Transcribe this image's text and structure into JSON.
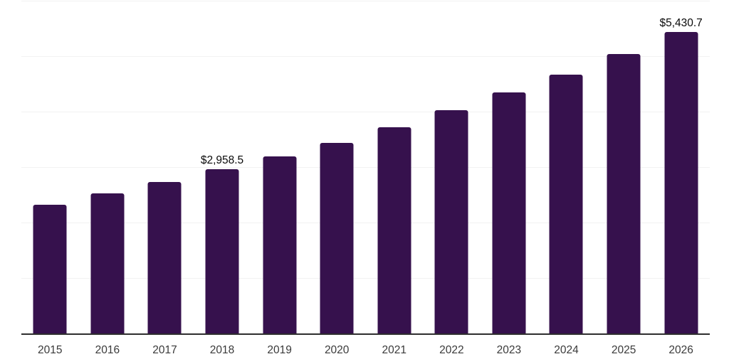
{
  "chart": {
    "background_color": "#ffffff",
    "bar_color": "#36114D",
    "gridline_color": "#f2f2f2",
    "axis_line_color": "#2e2e2e",
    "tick_label_color": "#3a3a3a",
    "annotation_color": "#0a0a0a"
  },
  "chart_data": {
    "type": "bar",
    "title": "",
    "xlabel": "",
    "ylabel": "",
    "categories": [
      "2015",
      "2016",
      "2017",
      "2018",
      "2019",
      "2020",
      "2021",
      "2022",
      "2023",
      "2024",
      "2025",
      "2026"
    ],
    "values": [
      2325,
      2530,
      2735,
      2958.5,
      3195,
      3430,
      3720,
      4030,
      4350,
      4670,
      5045,
      5430.7
    ],
    "annotations": [
      {
        "category": "2018",
        "text": "$2,958.5"
      },
      {
        "category": "2026",
        "text": "$5,430.7"
      }
    ],
    "ylim": [
      0,
      6000
    ],
    "gridline_step": 1000,
    "grid": true,
    "legend": false,
    "y_axis_tick_labels_visible": false
  }
}
